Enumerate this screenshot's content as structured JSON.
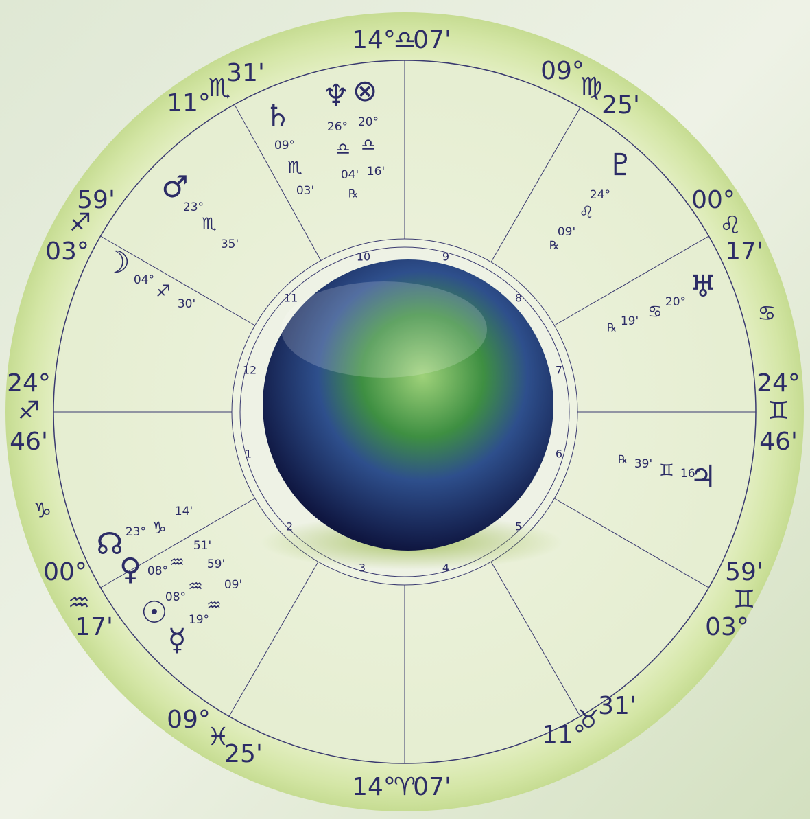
{
  "cusps": [
    {
      "deg": "14°",
      "sign": "♎",
      "min": "07'"
    },
    {
      "deg": "11°",
      "sign": "♏",
      "min": "31'"
    },
    {
      "deg": "03°",
      "sign": "♐",
      "min": "59'"
    },
    {
      "deg": "24°",
      "sign": "♐",
      "min": "46'"
    },
    {
      "deg": "00°",
      "sign": "♒",
      "min": "17'"
    },
    {
      "deg": "09°",
      "sign": "♓",
      "min": "25'"
    },
    {
      "deg": "14°",
      "sign": "♈",
      "min": "07'"
    },
    {
      "deg": "11°",
      "sign": "♉",
      "min": "31'"
    },
    {
      "deg": "03°",
      "sign": "♊",
      "min": "59'"
    },
    {
      "deg": "24°",
      "sign": "♊",
      "min": "46'"
    },
    {
      "deg": "00°",
      "sign": "♌",
      "min": "17'"
    },
    {
      "deg": "09°",
      "sign": "♍",
      "min": "25'"
    }
  ],
  "intercepted": [
    "♑",
    "♋"
  ],
  "houses": [
    "1",
    "2",
    "3",
    "4",
    "5",
    "6",
    "7",
    "8",
    "9",
    "10",
    "11",
    "12"
  ],
  "planets": [
    {
      "glyph": "♄",
      "deg": "09°",
      "sign": "♏",
      "min": "03'"
    },
    {
      "glyph": "♆",
      "deg": "26°",
      "sign": "♎",
      "min": "04'"
    },
    {
      "glyph": "⊗",
      "deg": "20°",
      "sign": "♎",
      "min": "16'",
      "retro": "℞"
    },
    {
      "glyph": "♂",
      "deg": "23°",
      "sign": "♏",
      "min": "35'"
    },
    {
      "glyph": "☽",
      "deg": "04°",
      "sign": "♐",
      "min": "30'"
    },
    {
      "glyph": "♇",
      "deg": "24°",
      "sign": "♌",
      "min": "09'",
      "retro": "℞"
    },
    {
      "glyph": "♅",
      "deg": "20°",
      "sign": "♋",
      "min": "19'",
      "retro": "℞"
    },
    {
      "glyph": "♃",
      "deg": "16°",
      "sign": "♊",
      "min": "39'",
      "retro": "℞"
    },
    {
      "glyph": "☊",
      "deg": "23°",
      "sign": "♑",
      "min": "14'"
    },
    {
      "glyph": "♀",
      "deg": "08°",
      "sign": "♒",
      "min": "51'"
    },
    {
      "glyph": "☉",
      "deg": "08°",
      "sign": "♒",
      "min": "59'"
    },
    {
      "glyph": "☿",
      "deg": "19°",
      "sign": "♒",
      "min": "09'"
    }
  ]
}
